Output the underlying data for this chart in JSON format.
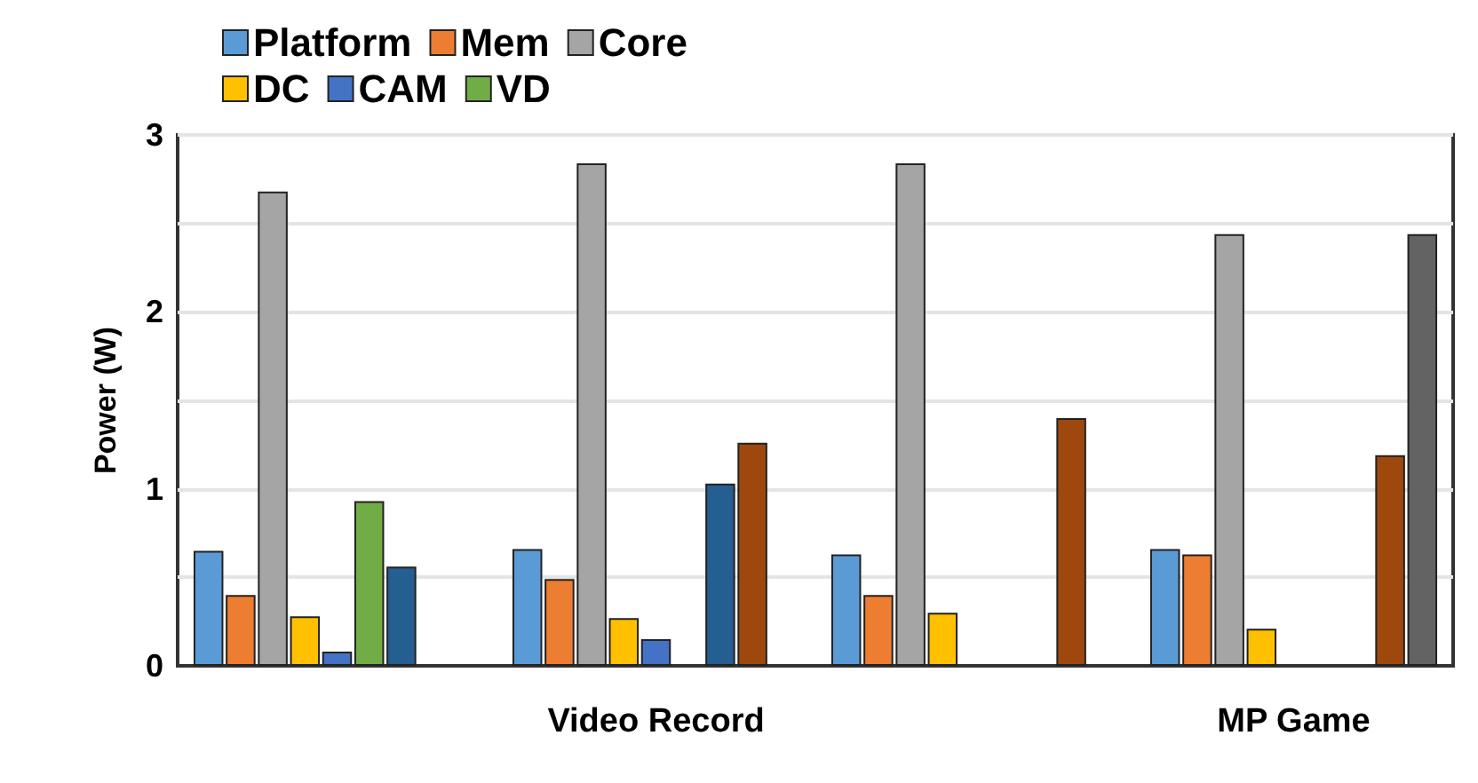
{
  "chart_data": {
    "type": "bar",
    "ylabel": "Power (W)",
    "categories": [
      null,
      "Video Record",
      null,
      "MP Game"
    ],
    "series": [
      {
        "name": "Platform",
        "color": "#5b9bd5",
        "values": [
          0.65,
          0.66,
          0.63,
          0.66
        ]
      },
      {
        "name": "Mem",
        "color": "#ed7d31",
        "values": [
          0.4,
          0.49,
          0.4,
          0.63
        ]
      },
      {
        "name": "Core",
        "color": "#a5a5a5",
        "values": [
          2.68,
          2.84,
          2.84,
          2.44
        ]
      },
      {
        "name": "DC",
        "color": "#ffc000",
        "values": [
          0.28,
          0.27,
          0.3,
          0.21
        ]
      },
      {
        "name": "CAM",
        "color": "#4472c4",
        "values": [
          0.08,
          0.15,
          null,
          null
        ]
      },
      {
        "name": "VD",
        "color": "#70ad47",
        "values": [
          0.93,
          null,
          null,
          null
        ]
      },
      {
        "color": "#255e91",
        "values": [
          0.56,
          1.03,
          null,
          null
        ]
      },
      {
        "color": "#9e480e",
        "values": [
          null,
          1.26,
          1.4,
          1.19
        ]
      },
      {
        "color": "#636363",
        "values": [
          null,
          null,
          null,
          2.44
        ]
      }
    ],
    "ylim": [
      0,
      3
    ],
    "yticks": [
      0,
      {
        "value": 0.5,
        "label": null
      },
      1,
      {
        "value": 1.5,
        "label": null
      },
      2,
      {
        "value": 2.5,
        "label": null
      },
      3
    ],
    "grid": "y",
    "legend": "top"
  }
}
